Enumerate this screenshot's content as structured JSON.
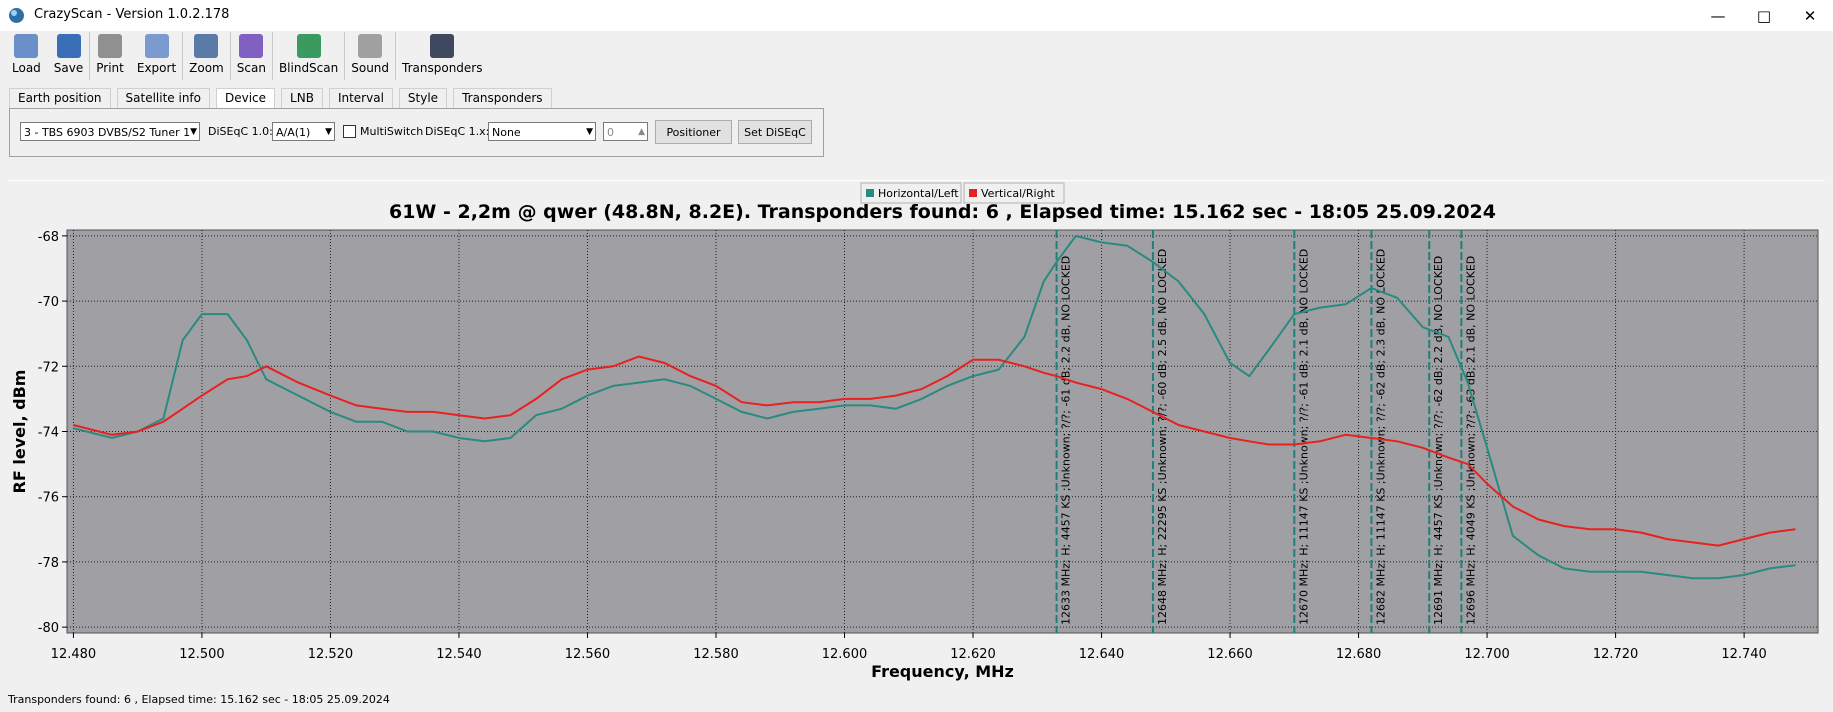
{
  "window": {
    "title": "CrazyScan - Version 1.0.2.178"
  },
  "toolbar": [
    "Load",
    "Save",
    "Print",
    "Export",
    "Zoom",
    "Scan",
    "BlindScan",
    "Sound",
    "Transponders"
  ],
  "tabs": [
    {
      "label": "Earth position",
      "selected": false
    },
    {
      "label": "Satellite info",
      "selected": false
    },
    {
      "label": "Device",
      "selected": true
    },
    {
      "label": "LNB",
      "selected": false
    },
    {
      "label": "Interval",
      "selected": false
    },
    {
      "label": "Style",
      "selected": false
    },
    {
      "label": "Transponders",
      "selected": false
    }
  ],
  "device": {
    "tuner": "3 - TBS 6903 DVBS/S2 Tuner 1",
    "diseqc10_label": "DiSEqC 1.0:",
    "diseqc10": "A/A(1)",
    "multiswitch": "MultiSwitch",
    "multiswitch_checked": false,
    "diseqc1x_label": "DiSEqC 1.x:",
    "diseqc1x": "None",
    "spin": 0,
    "buttons": [
      "Positioner",
      "Set DiSEqC"
    ]
  },
  "chart_data": {
    "type": "line",
    "title": "61W - 2,2m @ qwer (48.8N, 8.2E). Transponders found: 6 , Elapsed time: 15.162 sec - 18:05 25.09.2024",
    "x_label": "Frequency, MHz",
    "y_label": "RF level, dBm",
    "legend": "top",
    "grid": true,
    "plot_background": "#a0a0a4",
    "xlim": [
      12.479,
      12.7515
    ],
    "ylim": [
      -80.18,
      -67.82
    ],
    "xticks": [
      {
        "value": 12.48,
        "label": "12.480"
      },
      {
        "value": 12.5,
        "label": "12.500"
      },
      {
        "value": 12.52,
        "label": "12.520"
      },
      {
        "value": 12.54,
        "label": "12.540"
      },
      {
        "value": 12.56,
        "label": "12.560"
      },
      {
        "value": 12.58,
        "label": "12.580"
      },
      {
        "value": 12.6,
        "label": "12.600"
      },
      {
        "value": 12.62,
        "label": "12.620"
      },
      {
        "value": 12.64,
        "label": "12.640"
      },
      {
        "value": 12.66,
        "label": "12.660"
      },
      {
        "value": 12.68,
        "label": "12.680"
      },
      {
        "value": 12.7,
        "label": "12.700"
      },
      {
        "value": 12.72,
        "label": "12.720"
      },
      {
        "value": 12.74,
        "label": "12.740"
      }
    ],
    "yticks": [
      -80,
      -78,
      -76,
      -74,
      -72,
      -70,
      -68
    ],
    "x": [
      12.48,
      12.486,
      12.49,
      12.494,
      12.497,
      12.5,
      12.504,
      12.507,
      12.51,
      12.515,
      12.52,
      12.524,
      12.528,
      12.532,
      12.536,
      12.54,
      12.544,
      12.548,
      12.552,
      12.556,
      12.56,
      12.564,
      12.568,
      12.572,
      12.576,
      12.58,
      12.584,
      12.588,
      12.592,
      12.596,
      12.6,
      12.604,
      12.608,
      12.612,
      12.616,
      12.62,
      12.624,
      12.628,
      12.631,
      12.633,
      12.636,
      12.64,
      12.644,
      12.648,
      12.652,
      12.656,
      12.66,
      12.663,
      12.666,
      12.67,
      12.674,
      12.678,
      12.682,
      12.686,
      12.69,
      12.694,
      12.697,
      12.7,
      12.704,
      12.708,
      12.712,
      12.716,
      12.72,
      12.724,
      12.728,
      12.732,
      12.736,
      12.74,
      12.744,
      12.748
    ],
    "series": [
      {
        "name": "Horizontal/Left",
        "color": "#2a8a80",
        "values": [
          -73.9,
          -74.2,
          -74.0,
          -73.6,
          -71.2,
          -70.4,
          -70.4,
          -71.2,
          -72.4,
          -72.9,
          -73.4,
          -73.7,
          -73.7,
          -74.0,
          -74.0,
          -74.2,
          -74.3,
          -74.2,
          -73.5,
          -73.3,
          -72.9,
          -72.6,
          -72.5,
          -72.4,
          -72.6,
          -73.0,
          -73.4,
          -73.6,
          -73.4,
          -73.3,
          -73.2,
          -73.2,
          -73.3,
          -73.0,
          -72.6,
          -72.3,
          -72.1,
          -71.1,
          -69.4,
          -68.8,
          -68.0,
          -68.2,
          -68.3,
          -68.8,
          -69.4,
          -70.4,
          -71.9,
          -72.3,
          -71.5,
          -70.4,
          -70.2,
          -70.1,
          -69.6,
          -69.9,
          -70.8,
          -71.1,
          -72.5,
          -74.5,
          -77.2,
          -77.8,
          -78.2,
          -78.3,
          -78.3,
          -78.3,
          -78.4,
          -78.5,
          -78.5,
          -78.4,
          -78.2,
          -78.1
        ]
      },
      {
        "name": "Vertical/Right",
        "color": "#e82020",
        "values": [
          -73.8,
          -74.1,
          -74.0,
          -73.7,
          -73.3,
          -72.9,
          -72.4,
          -72.3,
          -72.0,
          -72.5,
          -72.9,
          -73.2,
          -73.3,
          -73.4,
          -73.4,
          -73.5,
          -73.6,
          -73.5,
          -73.0,
          -72.4,
          -72.1,
          -72.0,
          -71.7,
          -71.9,
          -72.3,
          -72.6,
          -73.1,
          -73.2,
          -73.1,
          -73.1,
          -73.0,
          -73.0,
          -72.9,
          -72.7,
          -72.3,
          -71.8,
          -71.8,
          -72.0,
          -72.2,
          -72.3,
          -72.5,
          -72.7,
          -73.0,
          -73.4,
          -73.8,
          -74.0,
          -74.2,
          -74.3,
          -74.4,
          -74.4,
          -74.3,
          -74.1,
          -74.2,
          -74.3,
          -74.5,
          -74.8,
          -75.0,
          -75.6,
          -76.3,
          -76.7,
          -76.9,
          -77.0,
          -77.0,
          -77.1,
          -77.3,
          -77.4,
          -77.5,
          -77.3,
          -77.1,
          -77.0
        ]
      }
    ],
    "marker_color": "#1f8078",
    "markers": [
      {
        "x": 12.633,
        "label": "12633 MHz; H; 4457 KS ;Unknown; ?/?; -61 dB; 2.2 dB, NO LOCKED"
      },
      {
        "x": 12.648,
        "label": "12648 MHz; H; 22295 KS ;Unknown; ?/?; -60 dB; 2.5 dB, NO LOCKED"
      },
      {
        "x": 12.67,
        "label": "12670 MHz; H; 11147 KS ;Unknown; ?/?; -61 dB; 2.1 dB, NO LOCKED"
      },
      {
        "x": 12.682,
        "label": "12682 MHz; H; 11147 KS ;Unknown; ?/?; -62 dB; 2.3 dB, NO LOCKED"
      },
      {
        "x": 12.691,
        "label": "12691 MHz; H; 4457 KS ;Unknown; ?/?; -62 dB; 2.2 dB, NO LOCKED"
      },
      {
        "x": 12.696,
        "label": "12696 MHz; H; 4049 KS ;Unknown; ?/?; -63 dB; 2.1 dB, NO LOCKED"
      }
    ]
  },
  "status": "Transponders found: 6 , Elapsed time: 15.162 sec - 18:05 25.09.2024"
}
